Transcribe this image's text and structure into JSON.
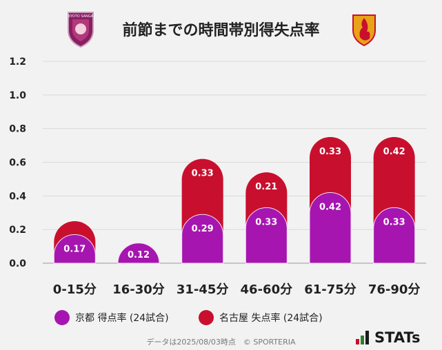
{
  "title": "前節までの時間帯別得失点率",
  "logos": {
    "left": {
      "text": "KYOTO SANGA",
      "color": "#8a1d64"
    },
    "right": {
      "color": "#e0a020"
    }
  },
  "legend": [
    {
      "label": "京都 得点率 (24試合)",
      "color": "#a615b0"
    },
    {
      "label": "名古屋 失点率 (24試合)",
      "color": "#c8102e"
    }
  ],
  "footnote": "データは2025/08/03時点　© SPORTERIA",
  "brand": {
    "name": "STATs",
    "colors": [
      "#c8102e",
      "#2e7d32",
      "#1a1a1a"
    ]
  },
  "chart_data": {
    "type": "bar",
    "stacked": true,
    "title": "前節までの時間帯別得失点率",
    "categories": [
      "0-15分",
      "16-30分",
      "31-45分",
      "46-60分",
      "61-75分",
      "76-90分"
    ],
    "series": [
      {
        "name": "京都 得点率 (24試合)",
        "color": "#a615b0",
        "values": [
          0.17,
          0.12,
          0.29,
          0.33,
          0.42,
          0.33
        ]
      },
      {
        "name": "名古屋 失点率 (24試合)",
        "color": "#c8102e",
        "values": [
          0.08,
          0.0,
          0.33,
          0.21,
          0.33,
          0.42
        ]
      }
    ],
    "data_labels": [
      [
        "0.17",
        "0.12",
        "0.29",
        "0.33",
        "0.42",
        "0.33"
      ],
      [
        "",
        "",
        "0.33",
        "0.21",
        "0.33",
        "0.42"
      ]
    ],
    "yticks": [
      "0.0",
      "0.2",
      "0.4",
      "0.6",
      "0.8",
      "1.0",
      "1.2"
    ],
    "ylim": [
      0,
      1.2
    ],
    "grid": true,
    "legend_position": "bottom"
  }
}
